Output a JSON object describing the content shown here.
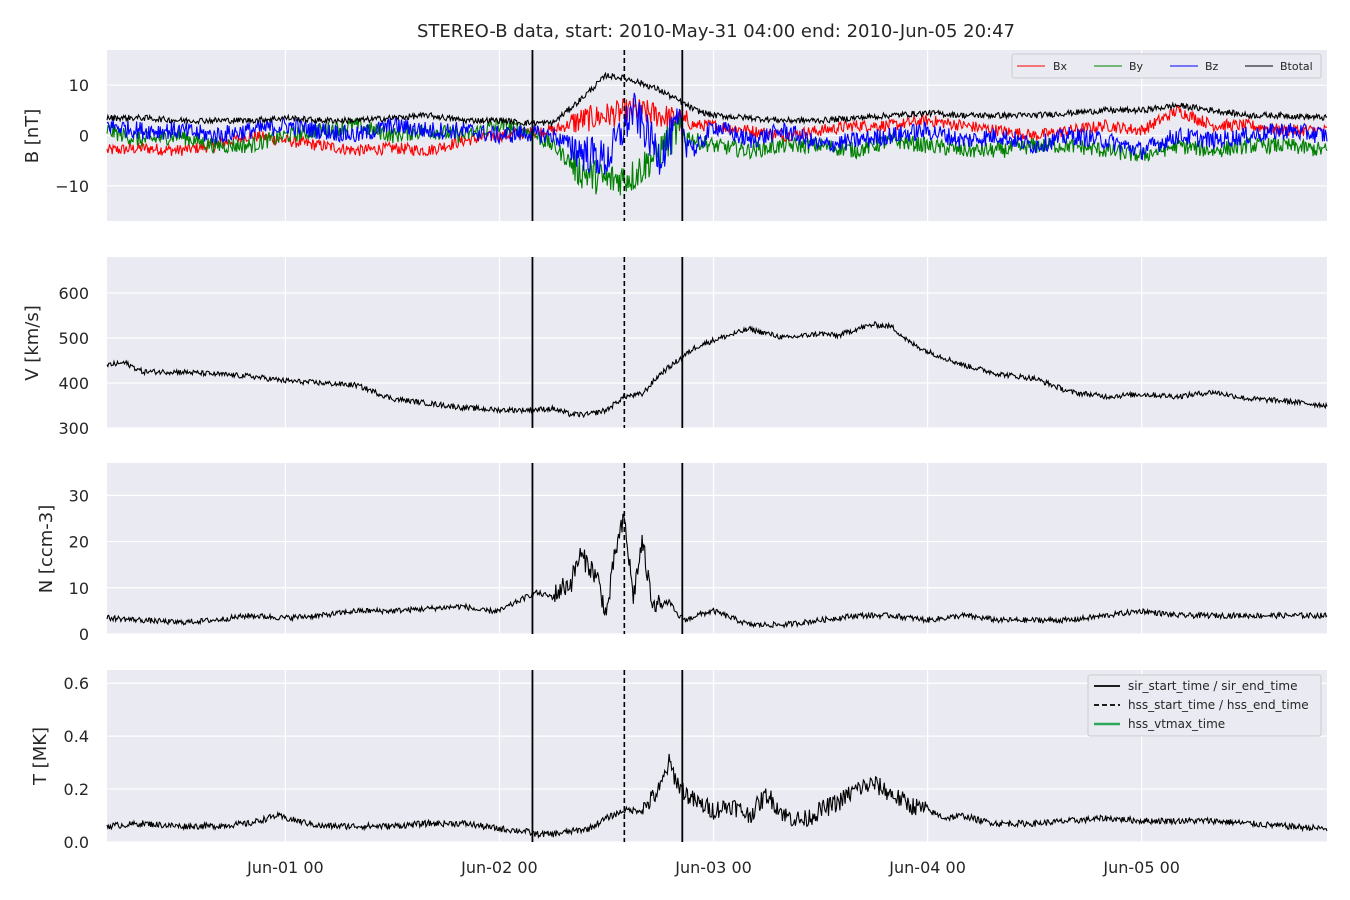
{
  "figure": {
    "title": "STEREO-B data, start: 2010-May-31 04:00  end: 2010-Jun-05 20:47"
  },
  "chart_data": [
    {
      "type": "line",
      "id": "mag",
      "ylabel": "B [nT]",
      "xlim": [
        0,
        136.78
      ],
      "ylim": [
        -17,
        17
      ],
      "yticks": [
        -10,
        0,
        10
      ],
      "ytick_labels": [
        "−10",
        "0",
        "10"
      ],
      "legend": {
        "position": "top-right",
        "entries": [
          "Bx",
          "By",
          "Bz",
          "Btotal"
        ]
      },
      "series": [
        {
          "name": "Bx",
          "color": "#ff0000",
          "x": [
            0,
            4,
            8,
            12,
            16,
            20,
            24,
            28,
            32,
            36,
            40,
            44,
            47,
            50,
            53,
            56,
            59,
            62,
            64,
            66,
            68,
            72,
            76,
            80,
            84,
            88,
            92,
            96,
            100,
            104,
            108,
            112,
            116,
            120,
            124,
            128,
            132,
            136.78
          ],
          "y": [
            -3,
            -2.5,
            -3,
            -2,
            0,
            -1,
            -2,
            -3,
            -2.5,
            -3,
            -1,
            0,
            0.5,
            1,
            3,
            4,
            5,
            4,
            3,
            2,
            2,
            1,
            0,
            1,
            2,
            2,
            3,
            2,
            1,
            0,
            1,
            2,
            1,
            5,
            2,
            2,
            1,
            1
          ]
        },
        {
          "name": "By",
          "color": "#008000",
          "x": [
            0,
            4,
            8,
            12,
            16,
            20,
            24,
            28,
            32,
            36,
            40,
            44,
            47,
            50,
            53,
            56,
            59,
            62,
            64,
            66,
            68,
            72,
            76,
            80,
            84,
            88,
            92,
            96,
            100,
            104,
            108,
            112,
            116,
            120,
            124,
            128,
            132,
            136.78
          ],
          "y": [
            1,
            -1,
            0,
            -2,
            -2,
            0,
            1,
            2,
            0,
            1,
            0,
            2,
            1,
            -2,
            -7,
            -9,
            -8,
            -3,
            1,
            -1,
            -2,
            -3,
            -2,
            -2,
            -3,
            -1,
            -2,
            -3,
            -3,
            -2,
            -2,
            -3,
            -4,
            -2,
            -3,
            -2,
            -2,
            -3
          ]
        },
        {
          "name": "Bz",
          "color": "#0000ff",
          "x": [
            0,
            4,
            8,
            12,
            16,
            20,
            24,
            28,
            32,
            36,
            40,
            44,
            47,
            50,
            53,
            56,
            59,
            62,
            64,
            66,
            68,
            72,
            76,
            80,
            84,
            88,
            92,
            96,
            100,
            104,
            108,
            112,
            116,
            120,
            124,
            128,
            132,
            136.78
          ],
          "y": [
            2,
            1,
            1,
            0,
            1,
            2,
            1,
            0,
            2,
            1,
            1,
            0,
            0.5,
            0,
            -3,
            -5,
            5,
            -4,
            2,
            -3,
            2,
            -1,
            1,
            -2,
            -1,
            0,
            1,
            -1,
            0,
            -2,
            0,
            -1,
            -3,
            0,
            -1,
            0,
            1,
            0
          ]
        },
        {
          "name": "Btotal",
          "color": "#000000",
          "x": [
            0,
            4,
            8,
            12,
            16,
            20,
            24,
            28,
            32,
            36,
            40,
            44,
            47,
            50,
            53,
            56,
            59,
            62,
            64,
            66,
            68,
            72,
            76,
            80,
            84,
            88,
            92,
            96,
            100,
            104,
            108,
            112,
            116,
            120,
            124,
            128,
            132,
            136.78
          ],
          "y": [
            3.5,
            3.5,
            3,
            3,
            3,
            3.5,
            3,
            3,
            3.5,
            4,
            3,
            3,
            2.5,
            2.5,
            7,
            12,
            11,
            9,
            7,
            5,
            4,
            3.5,
            3,
            3,
            3.5,
            4,
            4.5,
            4,
            4,
            4,
            4.5,
            5,
            5,
            6,
            5,
            4,
            4,
            3.5
          ]
        }
      ]
    },
    {
      "type": "line",
      "id": "velocity",
      "ylabel": "V [km/s]",
      "xlim": [
        0,
        136.78
      ],
      "ylim": [
        300,
        680
      ],
      "yticks": [
        300,
        400,
        500,
        600
      ],
      "ytick_labels": [
        "300",
        "400",
        "500",
        "600"
      ],
      "series": [
        {
          "name": "V",
          "color": "#000000",
          "x": [
            0,
            2,
            4,
            8,
            12,
            16,
            20,
            24,
            28,
            32,
            36,
            40,
            44,
            47,
            50,
            52,
            54,
            56,
            58,
            60,
            62,
            64,
            65,
            66,
            68,
            72,
            76,
            80,
            82,
            84,
            86,
            88,
            90,
            92,
            94,
            96,
            98,
            100,
            104,
            108,
            112,
            116,
            120,
            124,
            128,
            132,
            136.78
          ],
          "y": [
            440,
            445,
            425,
            425,
            420,
            415,
            405,
            400,
            395,
            365,
            355,
            345,
            340,
            340,
            343,
            330,
            330,
            340,
            370,
            375,
            420,
            450,
            465,
            480,
            495,
            520,
            500,
            510,
            505,
            520,
            530,
            525,
            490,
            470,
            455,
            440,
            430,
            420,
            410,
            380,
            370,
            375,
            370,
            380,
            365,
            360,
            350
          ]
        }
      ]
    },
    {
      "type": "line",
      "id": "density",
      "ylabel": "N [ccm-3]",
      "xlim": [
        0,
        136.78
      ],
      "ylim": [
        0,
        37
      ],
      "yticks": [
        0,
        10,
        20,
        30
      ],
      "ytick_labels": [
        "0",
        "10",
        "20",
        "30"
      ],
      "series": [
        {
          "name": "N",
          "color": "#000000",
          "x": [
            0,
            4,
            8,
            12,
            16,
            20,
            24,
            28,
            32,
            36,
            40,
            42,
            44,
            46,
            47,
            48,
            50,
            51,
            52,
            53,
            54,
            55,
            56,
            57,
            58,
            59,
            60,
            61,
            62,
            63,
            64,
            65,
            66,
            68,
            72,
            76,
            80,
            84,
            88,
            92,
            96,
            100,
            104,
            108,
            112,
            116,
            120,
            124,
            128,
            132,
            136.78
          ],
          "y": [
            3.5,
            3,
            2.5,
            3,
            4,
            3.5,
            4,
            5,
            5,
            5.5,
            6,
            5,
            5,
            7,
            8,
            9,
            8,
            10,
            11,
            17,
            15,
            12,
            4,
            18,
            25,
            8,
            20,
            8,
            6,
            7,
            4,
            3,
            4,
            5,
            2,
            2,
            3,
            4,
            4,
            3,
            4,
            3,
            3,
            3,
            4,
            5,
            4,
            4,
            4,
            4,
            4
          ]
        }
      ]
    },
    {
      "type": "line",
      "id": "temperature",
      "ylabel": "T [MK]",
      "xlim": [
        0,
        136.78
      ],
      "ylim": [
        0,
        0.65
      ],
      "yticks": [
        0.0,
        0.2,
        0.4,
        0.6
      ],
      "ytick_labels": [
        "0.0",
        "0.2",
        "0.4",
        "0.6"
      ],
      "legend": {
        "position": "top-right",
        "entries": [
          "sir_start_time / sir_end_time",
          "hss_start_time / hss_end_time",
          "hss_vtmax_time"
        ]
      },
      "series": [
        {
          "name": "T",
          "color": "#000000",
          "x": [
            0,
            4,
            8,
            12,
            16,
            19,
            20,
            24,
            28,
            32,
            36,
            40,
            44,
            47,
            48,
            50,
            52,
            54,
            56,
            58,
            60,
            62,
            63,
            64,
            65,
            66,
            68,
            70,
            72,
            74,
            76,
            78,
            80,
            82,
            84,
            86,
            88,
            90,
            92,
            94,
            96,
            98,
            100,
            104,
            108,
            112,
            116,
            120,
            124,
            128,
            132,
            136.78
          ],
          "y": [
            0.06,
            0.07,
            0.06,
            0.06,
            0.07,
            0.1,
            0.09,
            0.06,
            0.06,
            0.06,
            0.07,
            0.07,
            0.05,
            0.04,
            0.03,
            0.03,
            0.04,
            0.05,
            0.09,
            0.12,
            0.12,
            0.2,
            0.3,
            0.22,
            0.18,
            0.15,
            0.12,
            0.14,
            0.1,
            0.18,
            0.1,
            0.08,
            0.12,
            0.15,
            0.2,
            0.22,
            0.18,
            0.14,
            0.12,
            0.09,
            0.1,
            0.08,
            0.07,
            0.07,
            0.08,
            0.09,
            0.08,
            0.08,
            0.08,
            0.07,
            0.06,
            0.05
          ]
        }
      ]
    }
  ],
  "x_axis": {
    "tick_values": [
      20,
      44,
      68,
      92,
      116
    ],
    "tick_labels": [
      "Jun-01 00",
      "Jun-02 00",
      "Jun-03 00",
      "Jun-04 00",
      "Jun-05 00"
    ]
  },
  "event_lines": {
    "sir_start_time": 47.7,
    "hss_start_time": 58.0,
    "sir_end_time": 64.5
  },
  "legend_styles": {
    "sir": "solid-black",
    "hss": "dashed-black",
    "vtmax": "#2ca85a"
  }
}
